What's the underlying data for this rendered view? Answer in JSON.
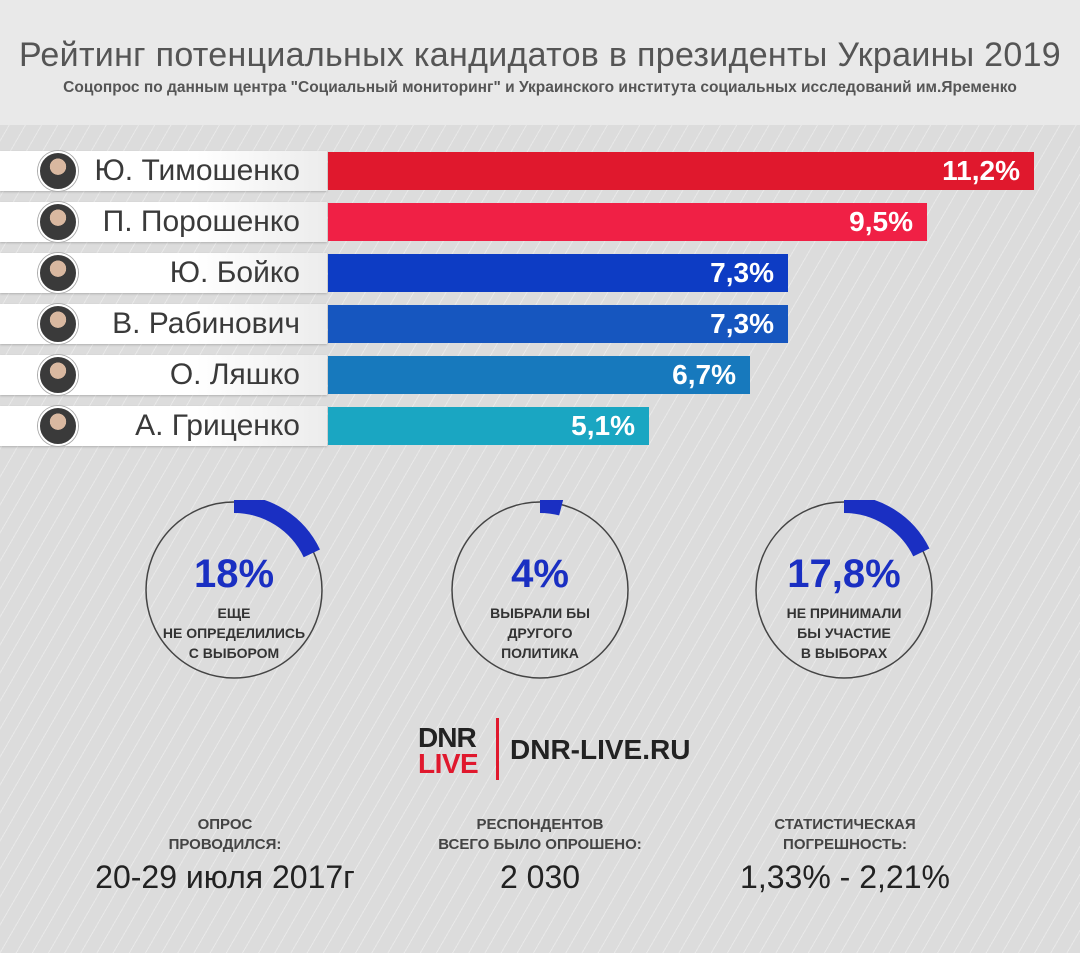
{
  "header": {
    "title": "Рейтинг потенциальных кандидатов в президенты Украины 2019",
    "subtitle": "Соцопрос по данным центра \"Социальный мониторинг\" и Украинского института социальных исследований им.Яременко"
  },
  "chart_data": {
    "type": "bar",
    "orientation": "horizontal",
    "title": "Рейтинг потенциальных кандидатов в президенты Украины 2019",
    "categories": [
      "Ю. Тимошенко",
      "П. Порошенко",
      "Ю. Бойко",
      "В. Рабинович",
      "О. Ляшко",
      "А. Гриценко"
    ],
    "values": [
      11.2,
      9.5,
      7.3,
      7.3,
      6.7,
      5.1
    ],
    "value_labels": [
      "11,2%",
      "9,5%",
      "7,3%",
      "7,3%",
      "6,7%",
      "5,1%"
    ],
    "bar_colors": [
      "#e0182d",
      "#f02045",
      "#0d3cc4",
      "#1656bf",
      "#1779bd",
      "#1aa6c2"
    ],
    "unit": "%"
  },
  "stats": [
    {
      "value": 18,
      "label": "18%",
      "desc": "ЕЩЕ\nНЕ ОПРЕДЕЛИЛИСЬ\nС ВЫБОРОМ"
    },
    {
      "value": 4,
      "label": "4%",
      "desc": "ВЫБРАЛИ БЫ\nДРУГОГО\nПОЛИТИКА"
    },
    {
      "value": 17.8,
      "label": "17,8%",
      "desc": "НЕ ПРИНИМАЛИ\nБЫ УЧАСТИЕ\nВ ВЫБОРАХ"
    }
  ],
  "logo": {
    "line1": "DNR",
    "line2": "LIVE",
    "url": "DNR-LIVE.RU"
  },
  "footer": [
    {
      "label": "ОПРОС\nПРОВОДИЛСЯ:",
      "value": "20-29 июля 2017г"
    },
    {
      "label": "РЕСПОНДЕНТОВ\nВСЕГО БЫЛО ОПРОШЕНО:",
      "value": "2 030"
    },
    {
      "label": "СТАТИСТИЧЕСКАЯ\nПОГРЕШНОСТЬ:",
      "value": "1,33% - 2,21%"
    }
  ],
  "colors": {
    "accent_blue": "#1a2fc2",
    "accent_red": "#e0182d"
  }
}
